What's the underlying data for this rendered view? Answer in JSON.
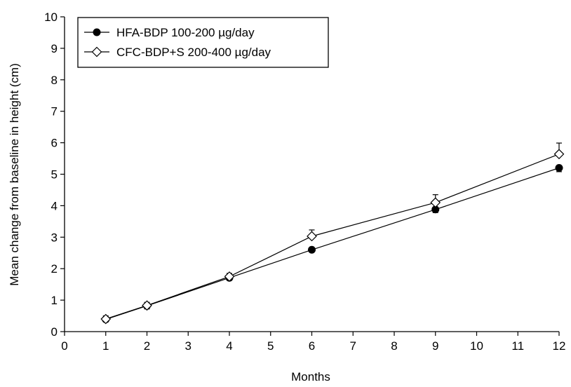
{
  "chart_data": {
    "type": "line",
    "xlabel": "Months",
    "ylabel": "Mean change from baseline in height (cm)",
    "xlim": [
      0,
      12
    ],
    "ylim": [
      0,
      10
    ],
    "x_ticks": [
      "0",
      "1",
      "2",
      "3",
      "4",
      "5",
      "6",
      "7",
      "8",
      "9",
      "10",
      "11",
      "12"
    ],
    "y_ticks": [
      "0",
      "1",
      "2",
      "3",
      "4",
      "5",
      "6",
      "7",
      "8",
      "9",
      "10"
    ],
    "grid": false,
    "legend_position": "top-left",
    "series": [
      {
        "name": "HFA-BDP 100-200 µg/day",
        "marker": "filled-circle",
        "x": [
          1,
          2,
          4,
          6,
          9,
          12
        ],
        "y": [
          0.39,
          0.82,
          1.71,
          2.6,
          3.88,
          5.2
        ],
        "err": [
          0.08,
          0.1,
          0.08,
          0.06,
          0.1,
          0.12
        ]
      },
      {
        "name": "CFC-BDP+S 200-400 µg/day",
        "marker": "open-diamond",
        "x": [
          1,
          2,
          4,
          6,
          9,
          12
        ],
        "y": [
          0.4,
          0.83,
          1.75,
          3.03,
          4.1,
          5.64
        ],
        "err": [
          0.1,
          0.1,
          0.1,
          0.2,
          0.25,
          0.35
        ]
      }
    ]
  }
}
